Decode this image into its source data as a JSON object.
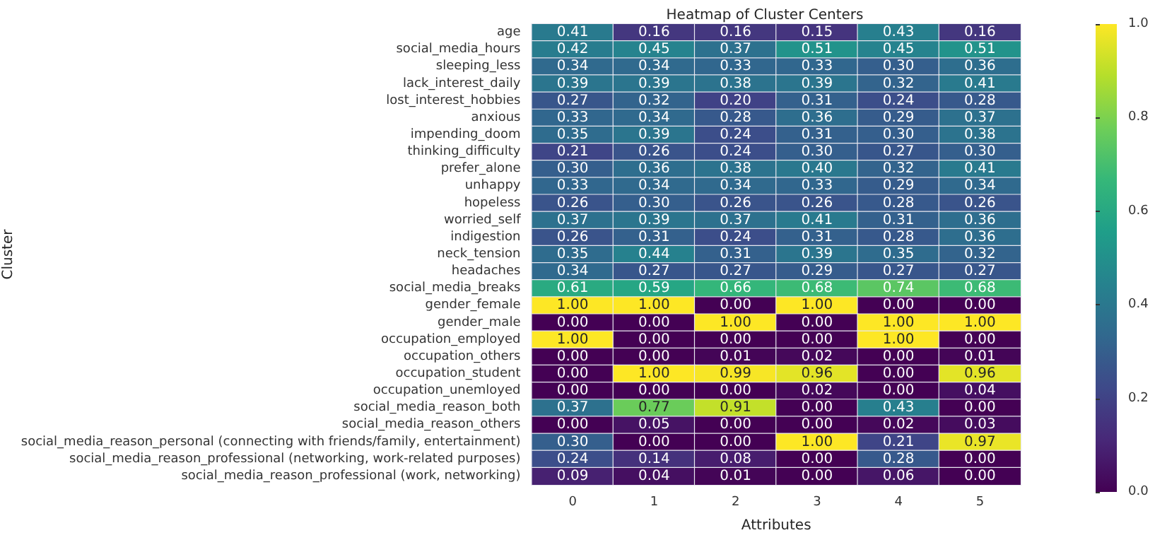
{
  "chart_data": {
    "type": "heatmap",
    "title": "Heatmap of Cluster Centers",
    "xlabel": "Attributes",
    "ylabel": "Cluster",
    "categories": [
      "0",
      "1",
      "2",
      "3",
      "4",
      "5"
    ],
    "y_categories": [
      "age",
      "social_media_hours",
      "sleeping_less",
      "lack_interest_daily",
      "lost_interest_hobbies",
      "anxious",
      "impending_doom",
      "thinking_difficulty",
      "prefer_alone",
      "unhappy",
      "hopeless",
      "worried_self",
      "indigestion",
      "neck_tension",
      "headaches",
      "social_media_breaks",
      "gender_female",
      "gender_male",
      "occupation_employed",
      "occupation_others",
      "occupation_student",
      "occupation_unemloyed",
      "social_media_reason_both",
      "social_media_reason_others",
      "social_media_reason_personal (connecting with friends/family, entertainment)",
      "social_media_reason_professional (networking, work-related purposes)",
      "social_media_reason_professional (work, networking)"
    ],
    "cells": [
      [
        0.41,
        0.16,
        0.16,
        0.15,
        0.43,
        0.16
      ],
      [
        0.42,
        0.45,
        0.37,
        0.51,
        0.45,
        0.51
      ],
      [
        0.34,
        0.34,
        0.33,
        0.33,
        0.3,
        0.36
      ],
      [
        0.39,
        0.39,
        0.38,
        0.39,
        0.32,
        0.41
      ],
      [
        0.27,
        0.32,
        0.2,
        0.31,
        0.24,
        0.28
      ],
      [
        0.33,
        0.34,
        0.28,
        0.36,
        0.29,
        0.37
      ],
      [
        0.35,
        0.39,
        0.24,
        0.31,
        0.3,
        0.38
      ],
      [
        0.21,
        0.26,
        0.24,
        0.3,
        0.27,
        0.3
      ],
      [
        0.3,
        0.36,
        0.38,
        0.4,
        0.32,
        0.41
      ],
      [
        0.33,
        0.34,
        0.34,
        0.33,
        0.29,
        0.34
      ],
      [
        0.26,
        0.3,
        0.26,
        0.26,
        0.28,
        0.26
      ],
      [
        0.37,
        0.39,
        0.37,
        0.41,
        0.31,
        0.36
      ],
      [
        0.26,
        0.31,
        0.24,
        0.31,
        0.28,
        0.36
      ],
      [
        0.35,
        0.44,
        0.31,
        0.39,
        0.35,
        0.32
      ],
      [
        0.34,
        0.27,
        0.27,
        0.29,
        0.27,
        0.27
      ],
      [
        0.61,
        0.59,
        0.66,
        0.68,
        0.74,
        0.68
      ],
      [
        1,
        1,
        0,
        1,
        0,
        0
      ],
      [
        0,
        0,
        1,
        0,
        1,
        1
      ],
      [
        1,
        0,
        0,
        0,
        1,
        0
      ],
      [
        0,
        0,
        0.01,
        0.02,
        0,
        0.01
      ],
      [
        0,
        1,
        0.99,
        0.96,
        0,
        0.96
      ],
      [
        0,
        0,
        0,
        0.02,
        0,
        0.04
      ],
      [
        0.37,
        0.77,
        0.91,
        0,
        0.43,
        0
      ],
      [
        0,
        0.05,
        0,
        0,
        0.02,
        0.03
      ],
      [
        0.3,
        0,
        0,
        1,
        0.21,
        0.97
      ],
      [
        0.24,
        0.14,
        0.08,
        0,
        0.28,
        0
      ],
      [
        0.09,
        0.04,
        0.01,
        0,
        0.06,
        0
      ]
    ],
    "cell_labels": [
      [
        "0.41",
        "0.16",
        "0.16",
        "0.15",
        "0.43",
        "0.16"
      ],
      [
        "0.42",
        "0.45",
        "0.37",
        "0.51",
        "0.45",
        "0.51"
      ],
      [
        "0.34",
        "0.34",
        "0.33",
        "0.33",
        "0.30",
        "0.36"
      ],
      [
        "0.39",
        "0.39",
        "0.38",
        "0.39",
        "0.32",
        "0.41"
      ],
      [
        "0.27",
        "0.32",
        "0.20",
        "0.31",
        "0.24",
        "0.28"
      ],
      [
        "0.33",
        "0.34",
        "0.28",
        "0.36",
        "0.29",
        "0.37"
      ],
      [
        "0.35",
        "0.39",
        "0.24",
        "0.31",
        "0.30",
        "0.38"
      ],
      [
        "0.21",
        "0.26",
        "0.24",
        "0.30",
        "0.27",
        "0.30"
      ],
      [
        "0.30",
        "0.36",
        "0.38",
        "0.40",
        "0.32",
        "0.41"
      ],
      [
        "0.33",
        "0.34",
        "0.34",
        "0.33",
        "0.29",
        "0.34"
      ],
      [
        "0.26",
        "0.30",
        "0.26",
        "0.26",
        "0.28",
        "0.26"
      ],
      [
        "0.37",
        "0.39",
        "0.37",
        "0.41",
        "0.31",
        "0.36"
      ],
      [
        "0.26",
        "0.31",
        "0.24",
        "0.31",
        "0.28",
        "0.36"
      ],
      [
        "0.35",
        "0.44",
        "0.31",
        "0.39",
        "0.35",
        "0.32"
      ],
      [
        "0.34",
        "0.27",
        "0.27",
        "0.29",
        "0.27",
        "0.27"
      ],
      [
        "0.61",
        "0.59",
        "0.66",
        "0.68",
        "0.74",
        "0.68"
      ],
      [
        "1.00",
        "1.00",
        "0.00",
        "1.00",
        "0.00",
        "0.00"
      ],
      [
        "0.00",
        "0.00",
        "1.00",
        "0.00",
        "1.00",
        "1.00"
      ],
      [
        "1.00",
        "0.00",
        "0.00",
        "0.00",
        "1.00",
        "0.00"
      ],
      [
        "0.00",
        "0.00",
        "0.01",
        "0.02",
        "0.00",
        "0.01"
      ],
      [
        "0.00",
        "1.00",
        "0.99",
        "0.96",
        "0.00",
        "0.96"
      ],
      [
        "0.00",
        "0.00",
        "0.00",
        "0.02",
        "0.00",
        "0.04"
      ],
      [
        "0.37",
        "0.77",
        "0.91",
        "0.00",
        "0.43",
        "0.00"
      ],
      [
        "0.00",
        "0.05",
        "0.00",
        "0.00",
        "0.02",
        "0.03"
      ],
      [
        "0.30",
        "0.00",
        "0.00",
        "1.00",
        "0.21",
        "0.97"
      ],
      [
        "0.24",
        "0.14",
        "0.08",
        "0.00",
        "0.28",
        "0.00"
      ],
      [
        "0.09",
        "0.04",
        "0.01",
        "0.00",
        "0.06",
        "0.00"
      ]
    ],
    "clim": [
      0,
      1
    ],
    "cticks": [
      {
        "value": 0,
        "label": "0.0"
      },
      0.2,
      0.4,
      0.6,
      0.8,
      {
        "value": 1,
        "label": "1.0"
      }
    ]
  }
}
